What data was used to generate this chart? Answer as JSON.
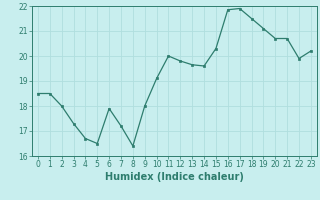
{
  "x": [
    0,
    1,
    2,
    3,
    4,
    5,
    6,
    7,
    8,
    9,
    10,
    11,
    12,
    13,
    14,
    15,
    16,
    17,
    18,
    19,
    20,
    21,
    22,
    23
  ],
  "y": [
    18.5,
    18.5,
    18.0,
    17.3,
    16.7,
    16.5,
    17.9,
    17.2,
    16.4,
    18.0,
    19.1,
    20.0,
    19.8,
    19.65,
    19.6,
    20.3,
    21.85,
    21.9,
    21.5,
    21.1,
    20.7,
    20.7,
    19.9,
    20.2
  ],
  "line_color": "#2e7d6e",
  "marker_color": "#2e7d6e",
  "bg_color": "#c8eeee",
  "grid_color": "#b0dede",
  "xlabel": "Humidex (Indice chaleur)",
  "ylim": [
    16,
    22
  ],
  "xlim_min": -0.5,
  "xlim_max": 23.5,
  "yticks": [
    16,
    17,
    18,
    19,
    20,
    21,
    22
  ],
  "xticks": [
    0,
    1,
    2,
    3,
    4,
    5,
    6,
    7,
    8,
    9,
    10,
    11,
    12,
    13,
    14,
    15,
    16,
    17,
    18,
    19,
    20,
    21,
    22,
    23
  ],
  "tick_fontsize": 5.5,
  "xlabel_fontsize": 7.0,
  "xlabel_fontweight": "bold"
}
